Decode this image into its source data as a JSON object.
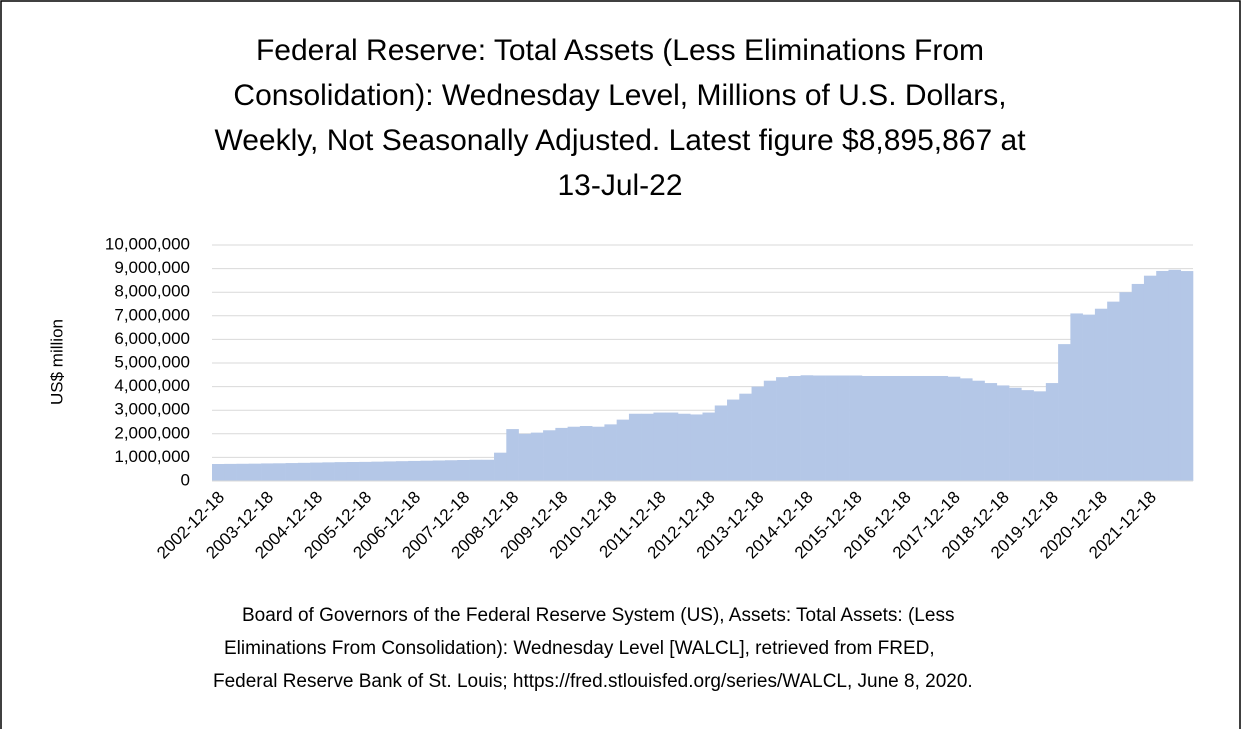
{
  "chart_data": {
    "type": "bar",
    "title": [
      "Federal Reserve: Total Assets (Less Eliminations From",
      "Consolidation): Wednesday Level, Millions of U.S. Dollars,",
      "Weekly, Not Seasonally Adjusted. Latest figure $8,895,867  at",
      "13-Jul-22"
    ],
    "y_label": "US$ million",
    "source": [
      "Board of Governors of the Federal Reserve System (US), Assets: Total Assets: (Less",
      "Eliminations From Consolidation): Wednesday Level [WALCL], retrieved from FRED,",
      "Federal Reserve Bank of St. Louis; https://fred.stlouisfed.org/series/WALCL, June 8, 2020."
    ],
    "categories": [
      "2002-12-18",
      null,
      null,
      null,
      "2003-12-18",
      null,
      null,
      null,
      "2004-12-18",
      null,
      null,
      null,
      "2005-12-18",
      null,
      null,
      null,
      "2006-12-18",
      null,
      null,
      null,
      "2007-12-18",
      null,
      null,
      null,
      "2008-12-18",
      null,
      null,
      null,
      "2009-12-18",
      null,
      null,
      null,
      "2010-12-18",
      null,
      null,
      null,
      "2011-12-18",
      null,
      null,
      null,
      "2012-12-18",
      null,
      null,
      null,
      "2013-12-18",
      null,
      null,
      null,
      "2014-12-18",
      null,
      null,
      null,
      "2015-12-18",
      null,
      null,
      null,
      "2016-12-18",
      null,
      null,
      null,
      "2017-12-18",
      null,
      null,
      null,
      "2018-12-18",
      null,
      null,
      null,
      "2019-12-18",
      null,
      null,
      null,
      "2020-12-18",
      null,
      null,
      null,
      "2021-12-18",
      null,
      null,
      null
    ],
    "values": [
      720000,
      725000,
      730000,
      735000,
      745000,
      750000,
      760000,
      770000,
      780000,
      790000,
      800000,
      805000,
      810000,
      820000,
      830000,
      840000,
      850000,
      860000,
      870000,
      880000,
      890000,
      900000,
      900000,
      1200000,
      2200000,
      2000000,
      2050000,
      2150000,
      2250000,
      2300000,
      2330000,
      2300000,
      2400000,
      2600000,
      2850000,
      2850000,
      2900000,
      2900000,
      2850000,
      2820000,
      2900000,
      3200000,
      3450000,
      3700000,
      4000000,
      4250000,
      4400000,
      4450000,
      4480000,
      4470000,
      4470000,
      4470000,
      4470000,
      4450000,
      4450000,
      4450000,
      4450000,
      4450000,
      4450000,
      4450000,
      4420000,
      4350000,
      4250000,
      4150000,
      4050000,
      3950000,
      3850000,
      3800000,
      4150000,
      5800000,
      7100000,
      7050000,
      7300000,
      7600000,
      8000000,
      8350000,
      8700000,
      8900000,
      8950000,
      8895867
    ],
    "color": "#b4c7e7",
    "ylim": [
      0,
      10000000
    ],
    "yticks": [
      0,
      {
        "value": 1000000,
        "label": "1,000,000"
      },
      {
        "value": 2000000,
        "label": "2,000,000"
      },
      {
        "value": 3000000,
        "label": "3,000,000"
      },
      {
        "value": 4000000,
        "label": "4,000,000"
      },
      {
        "value": 5000000,
        "label": "5,000,000"
      },
      {
        "value": 6000000,
        "label": "6,000,000"
      },
      {
        "value": 7000000,
        "label": "7,000,000"
      },
      {
        "value": 8000000,
        "label": "8,000,000"
      },
      {
        "value": 9000000,
        "label": "9,000,000"
      },
      {
        "value": 10000000,
        "label": "10,000,000"
      }
    ],
    "grid": true
  }
}
